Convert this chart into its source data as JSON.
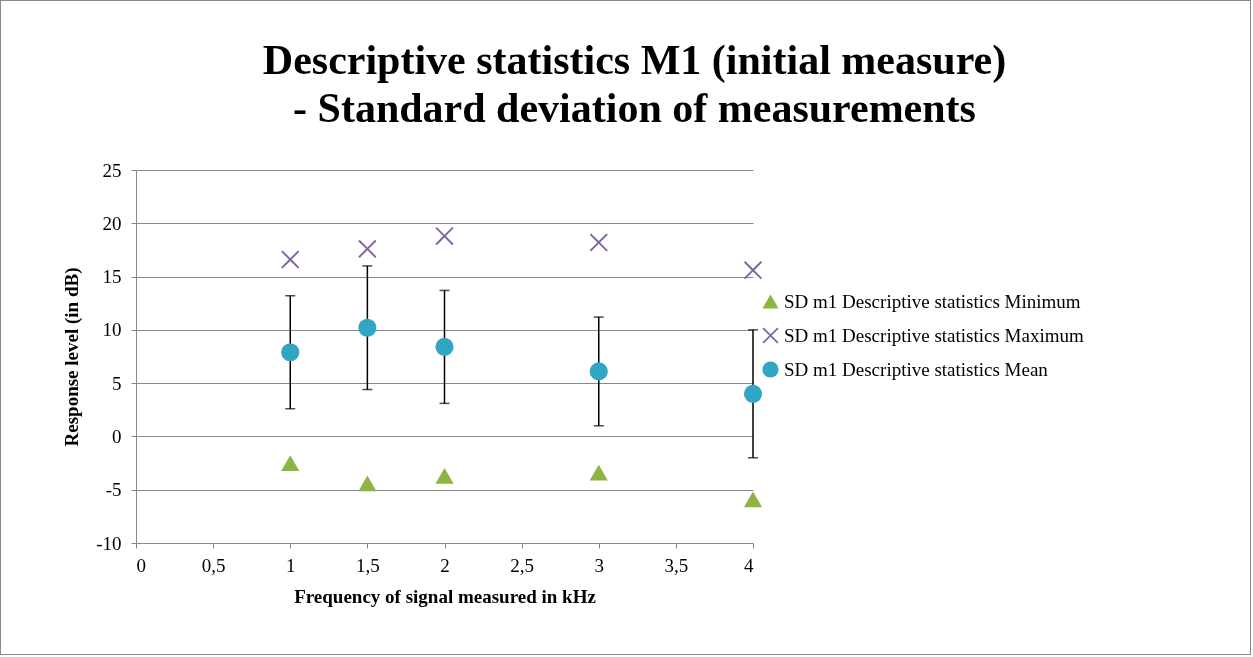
{
  "chart_data": {
    "type": "scatter",
    "title": "Descriptive statistics M1 (initial measure) - Standard deviation of measurements",
    "xlabel": "Frequency of signal measured in kHz",
    "ylabel": "Response level (in dB)",
    "x": [
      1,
      1.5,
      2,
      3,
      4
    ],
    "series": [
      {
        "name": "SD m1 Descriptive statistics Minimum",
        "color": "#8db543",
        "marker": "triangle",
        "values": [
          -2.5,
          -4.4,
          -3.7,
          -3.4,
          -5.9
        ]
      },
      {
        "name": "SD m1 Descriptive statistics Maximum",
        "color": "#8064a2",
        "marker": "cross",
        "values": [
          16.6,
          17.6,
          18.8,
          18.2,
          15.6
        ]
      },
      {
        "name": "SD m1 Descriptive statistics Mean",
        "color": "#31a5c4",
        "marker": "circle",
        "values": [
          7.9,
          10.2,
          8.4,
          6.1,
          4.0
        ],
        "errors": [
          5.3,
          5.8,
          5.3,
          5.1,
          6.0
        ]
      }
    ],
    "xlim": [
      0,
      4
    ],
    "xticks": [
      0,
      {
        "value": 0.5,
        "label": "0,5"
      },
      1,
      {
        "value": 1.5,
        "label": "1,5"
      },
      2,
      {
        "value": 2.5,
        "label": "2,5"
      },
      3,
      {
        "value": 3.5,
        "label": "3,5"
      },
      4
    ],
    "ylim": [
      -10,
      25
    ],
    "yticks": [
      -10,
      -5,
      0,
      5,
      10,
      15,
      20,
      25
    ],
    "grid": "y",
    "legend": "right"
  }
}
